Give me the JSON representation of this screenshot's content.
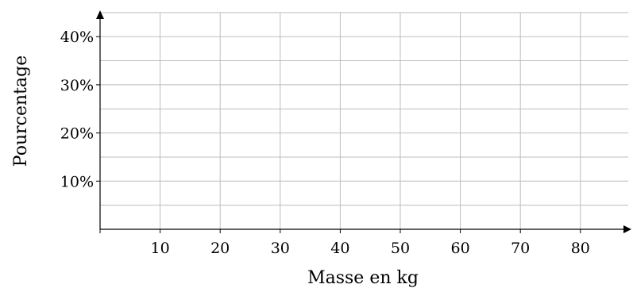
{
  "chart_data": {
    "type": "line",
    "title": "",
    "xlabel": "Masse en kg",
    "ylabel": "Pourcentage",
    "xlim": [
      0,
      88
    ],
    "ylim": [
      0,
      45
    ],
    "x_ticks": [
      10,
      20,
      30,
      40,
      50,
      60,
      70,
      80
    ],
    "x_tick_labels": [
      "10",
      "20",
      "30",
      "40",
      "50",
      "60",
      "70",
      "80"
    ],
    "y_ticks": [
      10,
      20,
      30,
      40
    ],
    "y_tick_labels": [
      "10%",
      "20%",
      "30%",
      "40%"
    ],
    "x_gridlines": [
      10,
      20,
      30,
      40,
      50,
      60,
      70,
      80
    ],
    "y_gridlines": [
      5,
      10,
      15,
      20,
      25,
      30,
      35,
      40,
      45
    ],
    "grid": true,
    "series": []
  }
}
